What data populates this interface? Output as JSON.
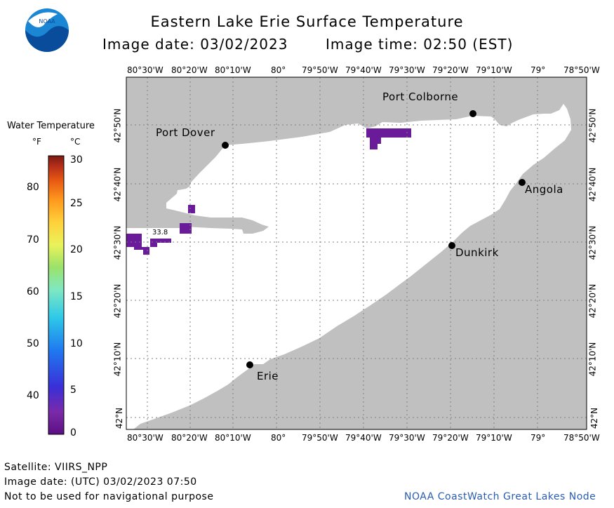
{
  "header": {
    "title": "Eastern Lake Erie Surface Temperature",
    "date_label": "Image date: 03/02/2023",
    "time_label": "Image time: 02:50 (EST)"
  },
  "logo": {
    "text": "NOAA"
  },
  "legend": {
    "title": "Water Temperature",
    "unit_f": "°F",
    "unit_c": "°C",
    "f_ticks": [
      "80",
      "70",
      "60",
      "50",
      "40"
    ],
    "c_ticks": [
      "30",
      "25",
      "20",
      "15",
      "10",
      "5",
      "0"
    ],
    "colors": [
      "#5c0f84",
      "#7a2aa8",
      "#3a2fd8",
      "#1f78f0",
      "#2ec9e8",
      "#7fe8c2",
      "#9be26a",
      "#e9f25a",
      "#ffd23c",
      "#ff9a1e",
      "#e85a12",
      "#b8301a",
      "#7a1a10"
    ]
  },
  "map": {
    "lon_labels": [
      "80°30'W",
      "80°20'W",
      "80°10'W",
      "80°",
      "79°50'W",
      "79°40'W",
      "79°30'W",
      "79°20'W",
      "79°10'W",
      "79°",
      "78°50'W"
    ],
    "lat_labels": [
      "42°50'N",
      "42°40'N",
      "42°30'N",
      "42°20'N",
      "42°10'N",
      "42°N"
    ],
    "water_color": "#ffffff",
    "land_color": "#c0c0c0",
    "ice_color": "#6a1b9a",
    "cities": [
      {
        "name": "Port Colborne"
      },
      {
        "name": "Port Dover"
      },
      {
        "name": "Angola"
      },
      {
        "name": "Dunkirk"
      },
      {
        "name": "Erie"
      }
    ],
    "annotation": "33.8"
  },
  "footer": {
    "satellite": "Satellite: VIIRS_NPP",
    "utc_date": "Image date: (UTC) 03/02/2023  07:50",
    "disclaimer": "Not to be used for navigational purpose",
    "credit": "NOAA CoastWatch Great Lakes Node"
  }
}
